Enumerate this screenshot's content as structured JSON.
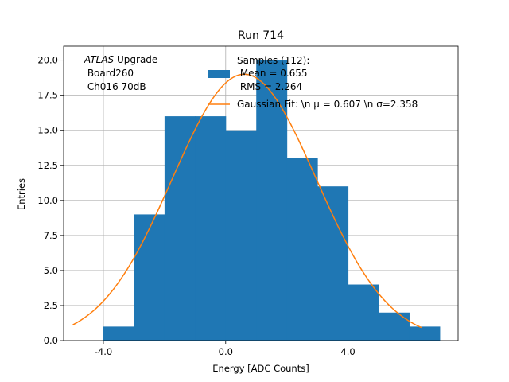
{
  "chart_data": {
    "type": "bar",
    "title": "Run 714",
    "xlabel": "Energy [ADC Counts]",
    "ylabel": "Entries",
    "xlim": [
      -5.3,
      7.6
    ],
    "ylim": [
      0,
      21.0
    ],
    "xticks": [
      -4.0,
      0.0,
      4.0
    ],
    "xtick_labels": [
      "-4.0",
      "0.0",
      "4.0"
    ],
    "yticks": [
      0.0,
      2.5,
      5.0,
      7.5,
      10.0,
      12.5,
      15.0,
      17.5,
      20.0
    ],
    "ytick_labels": [
      "0.0",
      "2.5",
      "5.0",
      "7.5",
      "10.0",
      "12.5",
      "15.0",
      "17.5",
      "20.0"
    ],
    "grid": true,
    "bin_edges": [
      -4,
      -3,
      -2,
      -1,
      0,
      1,
      2,
      3,
      4,
      5,
      6,
      7
    ],
    "counts": [
      1,
      9,
      16,
      16,
      15,
      20,
      13,
      11,
      4,
      2,
      1
    ],
    "bar_color": "#1f77b4",
    "fit": {
      "mu": 0.607,
      "sigma": 2.358,
      "amplitude": 19.0,
      "x_range": [
        -5.0,
        6.4
      ],
      "color": "#ff7f0e"
    },
    "annotation": {
      "italic": "ATLAS",
      "line1_rest": " Upgrade",
      "line2": " Board260",
      "line3": " Ch016 70dB"
    },
    "legend": {
      "placement": "top-center",
      "hist_lines": [
        "Samples (112):",
        " Mean = 0.655",
        " RMS = 2.264"
      ],
      "fit_label": "Gaussian Fit: \\n μ = 0.607 \\n σ=2.358"
    }
  }
}
